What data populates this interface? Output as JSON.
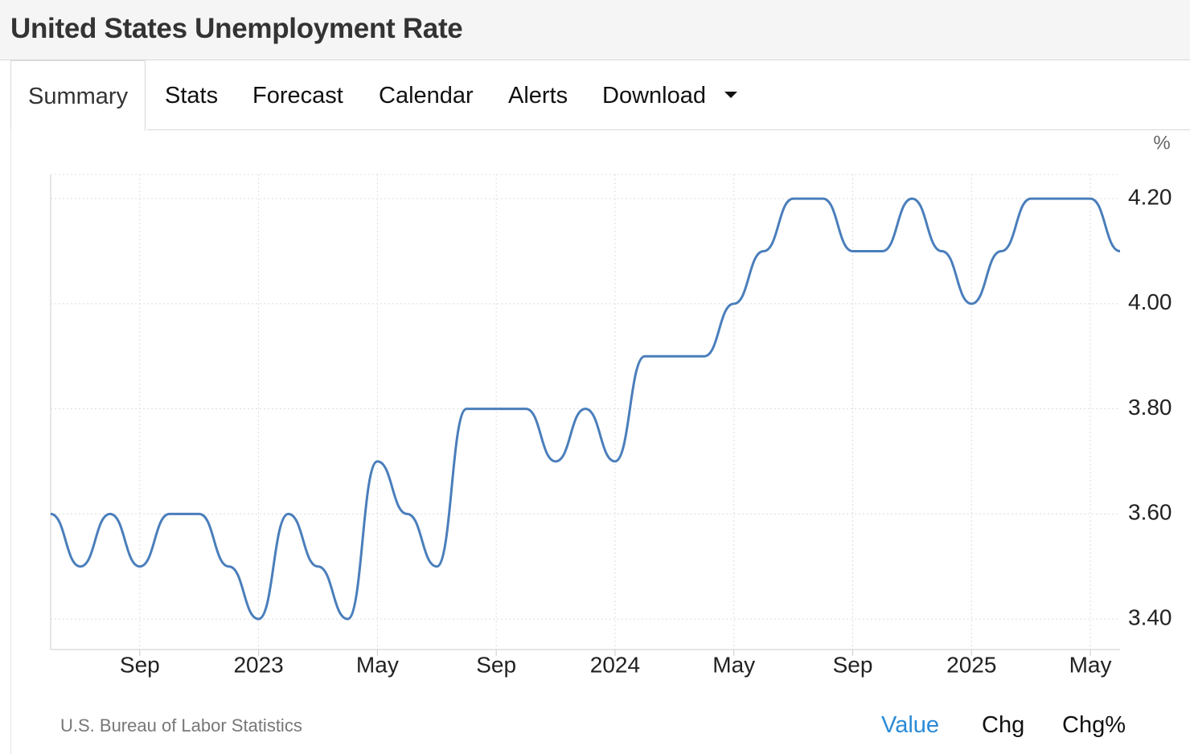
{
  "header": {
    "title": "United States Unemployment Rate"
  },
  "tabs": [
    "Summary",
    "Stats",
    "Forecast",
    "Calendar",
    "Alerts",
    "Download"
  ],
  "chart_data": {
    "type": "line",
    "unit_label": "%",
    "x": [
      "2022-06",
      "2022-07",
      "2022-08",
      "2022-09",
      "2022-10",
      "2022-11",
      "2022-12",
      "2023-01",
      "2023-02",
      "2023-03",
      "2023-04",
      "2023-05",
      "2023-06",
      "2023-07",
      "2023-08",
      "2023-09",
      "2023-10",
      "2023-11",
      "2023-12",
      "2024-01",
      "2024-02",
      "2024-03",
      "2024-04",
      "2024-05",
      "2024-06",
      "2024-07",
      "2024-08",
      "2024-09",
      "2024-10",
      "2024-11",
      "2024-12",
      "2025-01",
      "2025-02",
      "2025-03",
      "2025-04",
      "2025-05",
      "2025-06"
    ],
    "series": [
      {
        "name": "Unemployment Rate",
        "color": "#4a7ebb",
        "values": [
          3.6,
          3.5,
          3.6,
          3.5,
          3.6,
          3.6,
          3.5,
          3.4,
          3.6,
          3.5,
          3.4,
          3.7,
          3.6,
          3.5,
          3.8,
          3.8,
          3.8,
          3.7,
          3.8,
          3.7,
          3.9,
          3.9,
          3.9,
          4.0,
          4.1,
          4.2,
          4.2,
          4.1,
          4.1,
          4.2,
          4.1,
          4.0,
          4.1,
          4.2,
          4.2,
          4.2,
          4.1
        ]
      }
    ],
    "ylim": [
      3.342,
      4.246
    ],
    "yticks": [
      {
        "value": 3.4,
        "label": "3.40"
      },
      {
        "value": 3.6,
        "label": "3.60"
      },
      {
        "value": 3.8,
        "label": "3.80"
      },
      {
        "value": 4.0,
        "label": "4.00"
      },
      {
        "value": 4.2,
        "label": "4.20"
      }
    ],
    "xticks": [
      {
        "value": "2022-09",
        "label": "Sep"
      },
      {
        "value": "2023-01",
        "label": "2023"
      },
      {
        "value": "2023-05",
        "label": "May"
      },
      {
        "value": "2023-09",
        "label": "Sep"
      },
      {
        "value": "2024-01",
        "label": "2024"
      },
      {
        "value": "2024-05",
        "label": "May"
      },
      {
        "value": "2024-09",
        "label": "Sep"
      },
      {
        "value": "2025-01",
        "label": "2025"
      },
      {
        "value": "2025-05",
        "label": "May"
      }
    ],
    "grid": true
  },
  "footer": {
    "source": "U.S. Bureau of Labor Statistics",
    "toggles": [
      "Value",
      "Chg",
      "Chg%"
    ],
    "active_toggle_color": "#2a8bd8"
  }
}
